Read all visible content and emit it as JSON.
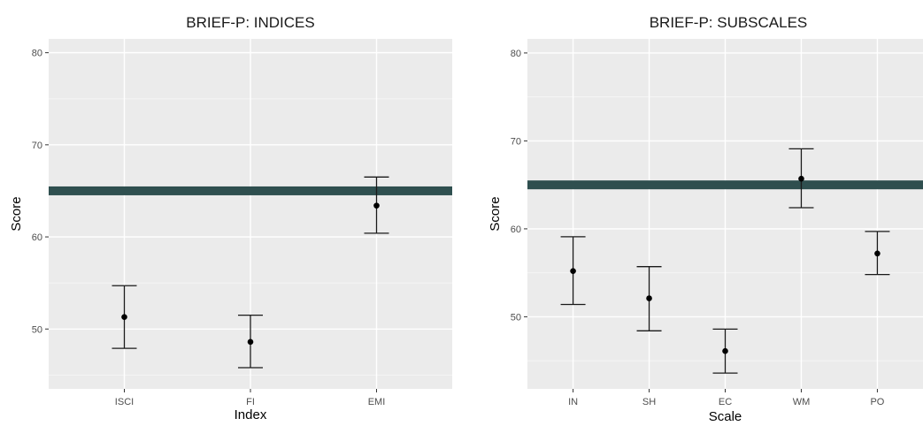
{
  "chart_data": [
    {
      "type": "scatter",
      "title": "BRIEF-P: INDICES",
      "xlabel": "Index",
      "ylabel": "Score",
      "categories": [
        "ISCI",
        "FI",
        "EMI"
      ],
      "values": [
        51.3,
        48.6,
        63.4
      ],
      "error_low": [
        47.9,
        45.8,
        60.4
      ],
      "error_high": [
        54.7,
        51.5,
        66.5
      ],
      "reference_line": 65,
      "yticks": [
        50,
        60,
        70,
        80
      ],
      "ylim": [
        43.5,
        81.5
      ],
      "grid": true
    },
    {
      "type": "scatter",
      "title": "BRIEF-P: SUBSCALES",
      "xlabel": "Scale",
      "ylabel": "Score",
      "categories": [
        "IN",
        "SH",
        "EC",
        "WM",
        "PO"
      ],
      "values": [
        55.2,
        52.1,
        46.1,
        65.7,
        57.2
      ],
      "error_low": [
        51.4,
        48.4,
        43.6,
        62.4,
        54.8
      ],
      "error_high": [
        59.1,
        55.7,
        48.6,
        69.1,
        59.7
      ],
      "reference_line": 65,
      "yticks": [
        50,
        60,
        70,
        80
      ],
      "ylim": [
        41.8,
        81.6
      ],
      "grid": true
    }
  ],
  "colors": {
    "panel": "#ebebeb",
    "grid_major": "#ffffff",
    "grid_minor": "#f5f5f5",
    "reference_line": "#2f4f4f",
    "point": "#000000",
    "errorbar": "#1a1a1a"
  }
}
